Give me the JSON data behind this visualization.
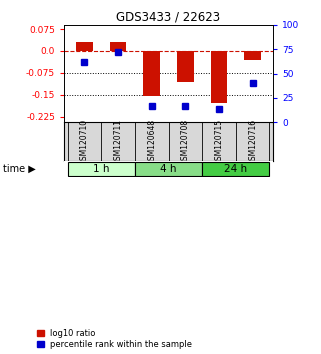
{
  "title": "GDS3433 / 22623",
  "samples": [
    "GSM120710",
    "GSM120711",
    "GSM120648",
    "GSM120708",
    "GSM120715",
    "GSM120716"
  ],
  "log10_ratio": [
    0.03,
    0.03,
    -0.155,
    -0.105,
    -0.178,
    -0.03
  ],
  "percentile_rank": [
    62,
    72,
    17,
    17,
    14,
    40
  ],
  "groups": [
    {
      "label": "1 h",
      "indices": [
        0,
        1
      ],
      "color": "#ccffcc"
    },
    {
      "label": "4 h",
      "indices": [
        2,
        3
      ],
      "color": "#88dd88"
    },
    {
      "label": "24 h",
      "indices": [
        4,
        5
      ],
      "color": "#44cc44"
    }
  ],
  "ylim_left": [
    -0.245,
    0.09
  ],
  "ylim_right": [
    0,
    100
  ],
  "yticks_left": [
    0.075,
    0.0,
    -0.075,
    -0.15,
    -0.225
  ],
  "yticks_right": [
    100,
    75,
    50,
    25,
    0
  ],
  "bar_color": "#cc1100",
  "dot_color": "#0000cc",
  "hline_y": 0.0,
  "dotted_lines": [
    -0.075,
    -0.15
  ],
  "bar_width": 0.5,
  "background_color": "#ffffff",
  "legend_items": [
    {
      "label": "log10 ratio",
      "color": "#cc1100"
    },
    {
      "label": "percentile rank within the sample",
      "color": "#0000cc"
    }
  ]
}
